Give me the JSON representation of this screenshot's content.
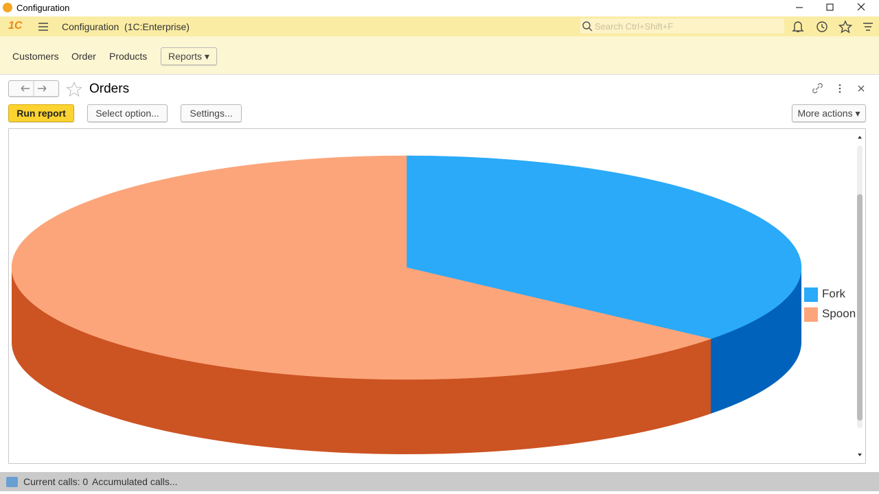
{
  "window": {
    "title": "Configuration"
  },
  "app_bar": {
    "logo": "1С",
    "title": "Configuration  (1C:Enterprise)",
    "search_placeholder": "Search Ctrl+Shift+F"
  },
  "sections": [
    "Customers",
    "Order",
    "Products",
    "Reports"
  ],
  "form": {
    "title": "Orders",
    "buttons": [
      "Run report",
      "Select option...",
      "Settings...",
      "More actions"
    ]
  },
  "chart_data": {
    "type": "pie3d",
    "categories": [
      "Fork",
      "Spoon"
    ],
    "values": [
      36,
      64
    ],
    "colors": [
      "#2aaaf8",
      "#fca57a"
    ],
    "depth_colors": [
      "#0062bb",
      "#cc5322"
    ],
    "legend": "right"
  },
  "status_bar": {
    "items": [
      "Current calls: 0",
      "Accumulated calls..."
    ]
  }
}
